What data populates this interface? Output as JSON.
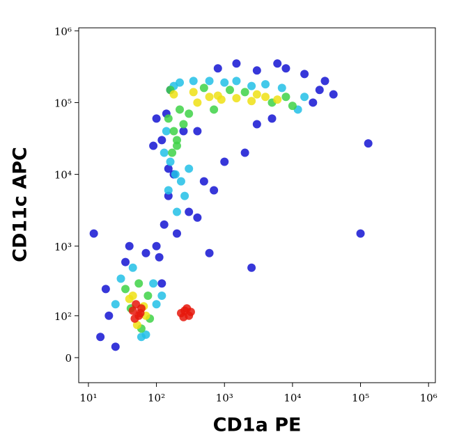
{
  "chart_data": {
    "type": "scatter",
    "x_label": "CD1a PE",
    "y_label": "CD11c APC",
    "xscale": "log",
    "yscale": "biexponential",
    "xlim": [
      7.2,
      1260000
    ],
    "ylim": [
      -50,
      1100000
    ],
    "xticks": [
      {
        "value": 10,
        "label": "10¹"
      },
      {
        "value": 100,
        "label": "10²"
      },
      {
        "value": 1000,
        "label": "10³"
      },
      {
        "value": 10000,
        "label": "10⁴"
      },
      {
        "value": 100000,
        "label": "10⁵"
      },
      {
        "value": 1000000,
        "label": "10⁶"
      }
    ],
    "yticks": [
      0,
      {
        "value": 100,
        "label": "10²"
      },
      {
        "value": 1000,
        "label": "10³"
      },
      {
        "value": 10000,
        "label": "10⁴"
      },
      {
        "value": 100000,
        "label": "10⁵"
      },
      {
        "value": 1000000,
        "label": "10⁶"
      }
    ],
    "series": [
      {
        "color": "#1414d2",
        "x": [
          20,
          15,
          18,
          25,
          35,
          100,
          130,
          150,
          110,
          70,
          40,
          120,
          200,
          300,
          400,
          500,
          700,
          1000,
          2000,
          400,
          250,
          120,
          90,
          180,
          20000,
          25000,
          40000,
          30000,
          15000,
          8000,
          6000,
          3000,
          1500,
          800,
          3000,
          5000,
          12,
          100000,
          130000,
          2500,
          600,
          150,
          140,
          100,
          160
        ],
        "y": [
          100,
          40,
          250,
          20,
          600,
          1000,
          2000,
          5000,
          700,
          800,
          1000,
          300,
          1500,
          3000,
          2500,
          8000,
          6000,
          15000,
          20000,
          40000,
          40000,
          30000,
          25000,
          10000,
          100000,
          150000,
          130000,
          200000,
          250000,
          300000,
          350000,
          280000,
          350000,
          300000,
          50000,
          60000,
          1500,
          1500,
          27000,
          500,
          800,
          12000,
          70000,
          60000,
          150000
        ]
      },
      {
        "color": "#22bfe6",
        "x": [
          30,
          90,
          70,
          25,
          100,
          45,
          60,
          120,
          140,
          160,
          190,
          230,
          300,
          260,
          200,
          150,
          130,
          15000,
          12000,
          7000,
          4000,
          2500,
          1500,
          1000,
          600,
          180,
          220,
          350
        ],
        "y": [
          350,
          300,
          45,
          150,
          150,
          500,
          40,
          200,
          40000,
          15000,
          10000,
          8000,
          12000,
          5000,
          3000,
          6000,
          20000,
          120000,
          80000,
          160000,
          180000,
          170000,
          200000,
          190000,
          200000,
          170000,
          190000,
          200000
        ]
      },
      {
        "color": "#3ed246",
        "x": [
          35,
          75,
          60,
          42,
          80,
          55,
          150,
          180,
          200,
          220,
          160,
          500,
          1200,
          2000,
          5000,
          8000,
          10000,
          700,
          300,
          250,
          200,
          170
        ],
        "y": [
          250,
          200,
          60,
          130,
          90,
          300,
          60000,
          40000,
          25000,
          80000,
          150000,
          160000,
          150000,
          140000,
          100000,
          120000,
          90000,
          80000,
          70000,
          50000,
          30000,
          20000
        ]
      },
      {
        "color": "#eee014",
        "x": [
          40,
          65,
          52,
          70,
          45,
          180,
          350,
          400,
          600,
          900,
          1500,
          2500,
          4000,
          6000,
          3000,
          800
        ],
        "y": [
          180,
          140,
          70,
          100,
          200,
          130000,
          140000,
          100000,
          120000,
          110000,
          115000,
          105000,
          120000,
          110000,
          130000,
          125000
        ]
      },
      {
        "color": "#e6180c",
        "x": [
          45,
          55,
          50,
          60,
          48,
          58,
          230,
          260,
          300,
          280,
          250,
          320
        ],
        "y": [
          120,
          100,
          150,
          130,
          90,
          110,
          110,
          120,
          100,
          130,
          95,
          115
        ]
      }
    ]
  }
}
